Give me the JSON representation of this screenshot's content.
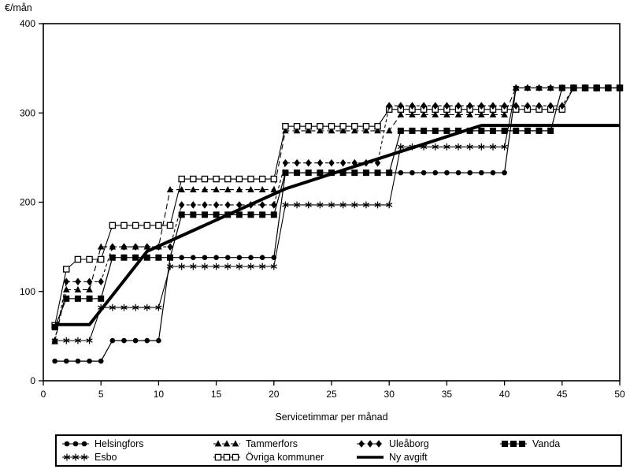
{
  "page": {
    "background": "#ffffff",
    "foreground": "#000000"
  },
  "chart_data": {
    "type": "line",
    "title": "",
    "ylabel": "€/mån",
    "xlabel": "Servicetimmar per månad",
    "xlim": [
      0,
      50
    ],
    "ylim": [
      0,
      400
    ],
    "x_ticks": [
      0,
      5,
      10,
      15,
      20,
      25,
      30,
      35,
      40,
      45,
      50
    ],
    "y_ticks": [
      0,
      100,
      200,
      300,
      400
    ],
    "grid": false,
    "frame": true,
    "legend_position": "bottom-box",
    "series": [
      {
        "name": "Esbo",
        "key": "esbo",
        "marker": "asterisk",
        "dash": "",
        "width": 1.1,
        "segments": [
          [
            1,
            4,
            45
          ],
          [
            5,
            10,
            82
          ],
          [
            11,
            20,
            128
          ],
          [
            21,
            30,
            197
          ],
          [
            31,
            40,
            262
          ],
          [
            41,
            50,
            328
          ]
        ]
      },
      {
        "name": "Helsingfors",
        "key": "helsingfors",
        "marker": "filled-circle",
        "dash": "",
        "width": 1.2,
        "segments": [
          [
            1,
            5,
            22
          ],
          [
            6,
            10,
            45
          ],
          [
            11,
            20,
            138
          ],
          [
            21,
            40,
            233
          ],
          [
            41,
            50,
            328
          ]
        ]
      },
      {
        "name": "Tammerfors",
        "key": "tammerfors",
        "marker": "filled-triangle",
        "dash": "7,4",
        "width": 1.1,
        "segments": [
          [
            1,
            1,
            44
          ],
          [
            2,
            4,
            102
          ],
          [
            5,
            10,
            150
          ],
          [
            11,
            20,
            214
          ],
          [
            21,
            30,
            280
          ],
          [
            31,
            40,
            298
          ],
          [
            41,
            50,
            328
          ]
        ]
      },
      {
        "name": "Övriga kommuner",
        "key": "ovriga-kommuner",
        "marker": "open-square",
        "dash": "",
        "width": 1.1,
        "segments": [
          [
            1,
            1,
            62
          ],
          [
            2,
            2,
            125
          ],
          [
            3,
            5,
            136
          ],
          [
            6,
            11,
            174
          ],
          [
            12,
            20,
            226
          ],
          [
            21,
            29,
            285
          ],
          [
            30,
            45,
            304
          ],
          [
            46,
            50,
            328
          ]
        ]
      },
      {
        "name": "Uleåborg",
        "key": "uleaborg",
        "marker": "filled-diamond",
        "dash": "4,3",
        "width": 1.1,
        "segments": [
          [
            1,
            1,
            45
          ],
          [
            2,
            5,
            111
          ],
          [
            6,
            11,
            150
          ],
          [
            12,
            20,
            197
          ],
          [
            21,
            29,
            244
          ],
          [
            30,
            45,
            308
          ],
          [
            46,
            50,
            328
          ]
        ]
      },
      {
        "name": "Vanda",
        "key": "vanda",
        "marker": "filled-square",
        "dash": "",
        "width": 1.2,
        "segments": [
          [
            1,
            1,
            60
          ],
          [
            2,
            5,
            92
          ],
          [
            6,
            11,
            138
          ],
          [
            12,
            20,
            186
          ],
          [
            21,
            30,
            233
          ],
          [
            31,
            44,
            280
          ],
          [
            45,
            50,
            328
          ]
        ]
      },
      {
        "name": "Ny avgift",
        "key": "ny-avgift",
        "marker": "none",
        "dash": "",
        "width": 4,
        "points": [
          [
            1,
            63
          ],
          [
            4,
            63
          ],
          [
            9,
            145
          ],
          [
            21,
            215
          ],
          [
            38,
            286
          ],
          [
            50,
            286
          ]
        ]
      }
    ],
    "legend": {
      "rows": [
        [
          "Helsingfors",
          "Tammerfors",
          "Uleåborg",
          "Vanda"
        ],
        [
          "Esbo",
          "Övriga kommuner",
          "Ny avgift"
        ]
      ]
    }
  }
}
